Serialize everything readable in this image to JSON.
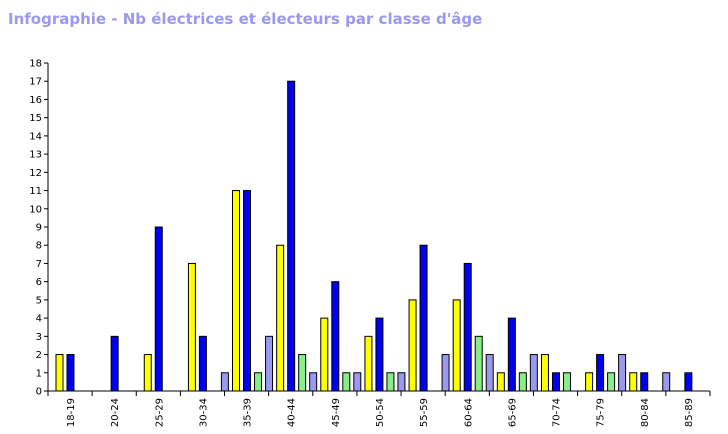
{
  "page_title": "Infographie - Nb électrices et électeurs par classe d'âge",
  "colors": {
    "title": "#9999ee",
    "series": [
      "#ffff00",
      "#0000ee",
      "#88ee88",
      "#9999ee"
    ]
  },
  "chart_data": {
    "type": "bar",
    "title": "Infographie - Nb électrices et électeurs par classe d'âge",
    "xlabel": "",
    "ylabel": "",
    "ylim": [
      0,
      18
    ],
    "yticks": [
      "0",
      "1",
      "2",
      "3",
      "4",
      "5",
      "6",
      "7",
      "8",
      "9",
      "10",
      "11",
      "12",
      "13",
      "14",
      "15",
      "16",
      "17",
      "18"
    ],
    "grid": false,
    "legend": "none",
    "categories": [
      "18-19",
      "20-24",
      "25-29",
      "30-34",
      "35-39",
      "40-44",
      "45-49",
      "50-54",
      "55-59",
      "60-64",
      "65-69",
      "70-74",
      "75-79",
      "80-84",
      "85-89"
    ],
    "series": [
      {
        "values": [
          2,
          0,
          2,
          7,
          11,
          8,
          4,
          3,
          5,
          5,
          1,
          2,
          1,
          1,
          0
        ]
      },
      {
        "values": [
          2,
          3,
          9,
          3,
          11,
          17,
          6,
          4,
          8,
          7,
          4,
          1,
          2,
          1,
          1
        ]
      },
      {
        "values": [
          0,
          0,
          0,
          0,
          1,
          2,
          1,
          1,
          0,
          3,
          1,
          1,
          1,
          0,
          0
        ]
      },
      {
        "values": [
          0,
          0,
          0,
          1,
          3,
          1,
          1,
          1,
          2,
          2,
          2,
          0,
          2,
          1,
          0
        ]
      }
    ]
  }
}
